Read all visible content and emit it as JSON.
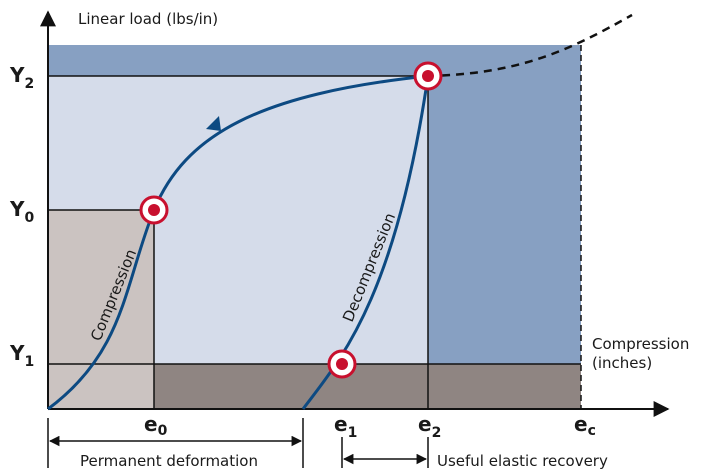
{
  "axes": {
    "y_title": "Linear load (lbs/in)",
    "x_title_line1": "Compression",
    "x_title_line2": "(inches)"
  },
  "y_ticks": {
    "y2": {
      "main": "Y",
      "sub": "2"
    },
    "y0": {
      "main": "Y",
      "sub": "0"
    },
    "y1": {
      "main": "Y",
      "sub": "1"
    }
  },
  "x_ticks": {
    "e0": {
      "main": "e",
      "sub": "0"
    },
    "e1": {
      "main": "e",
      "sub": "1"
    },
    "e2": {
      "main": "e",
      "sub": "2"
    },
    "ec": {
      "main": "e",
      "sub": "c"
    }
  },
  "curves": {
    "compression": "Compression",
    "decompression": "Decompression"
  },
  "annotations": {
    "permanent_deformation": "Permanent deformation",
    "useful_elastic_recovery": "Useful elastic recovery"
  },
  "colors": {
    "light_region": "#d5dcea",
    "dark_blue_region": "#87a0c2",
    "gray_region": "#cbc3c1",
    "brown_band": "#8f8582",
    "curve": "#0d4a82",
    "marker_red": "#c8102e"
  }
}
